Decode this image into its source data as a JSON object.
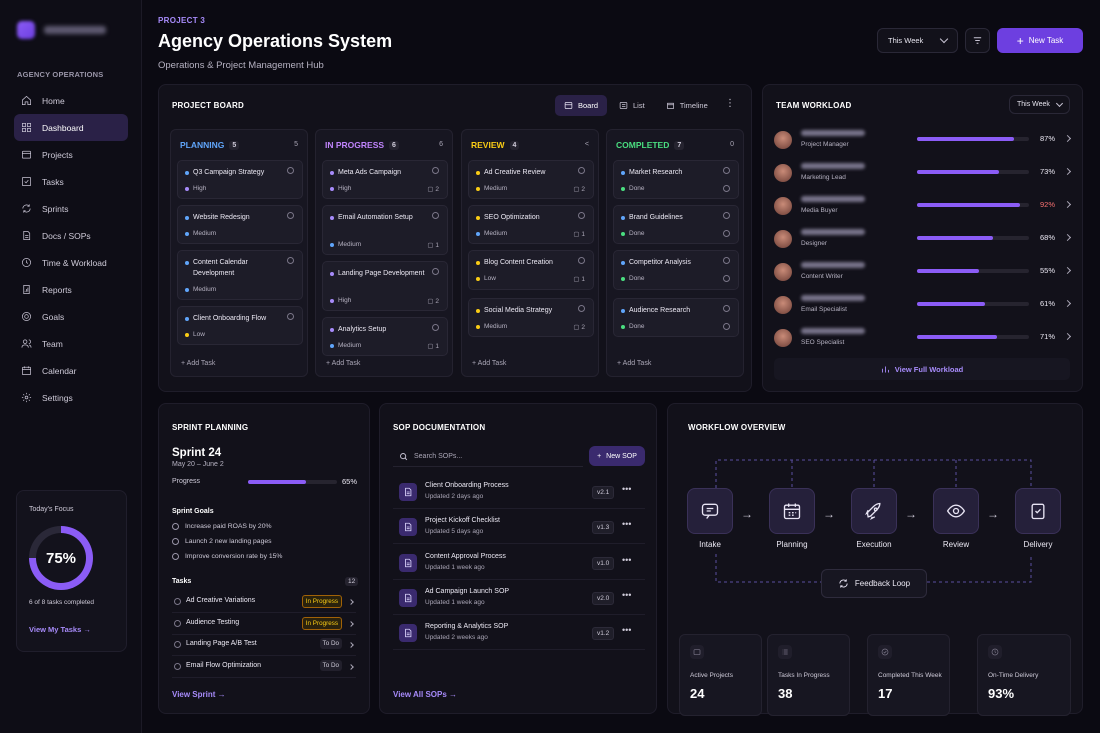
{
  "colors": {
    "accent": "#8b5cf6",
    "planning": "#60a5fa",
    "progress": "#c084fc",
    "review": "#facc15",
    "completed": "#4ade80",
    "danger": "#f87171"
  },
  "sidebar": {
    "section": "AGENCY OPERATIONS",
    "items": [
      {
        "label": "Home",
        "icon": "home-icon"
      },
      {
        "label": "Dashboard",
        "icon": "grid-icon"
      },
      {
        "label": "Projects",
        "icon": "folder-icon"
      },
      {
        "label": "Tasks",
        "icon": "check-square-icon"
      },
      {
        "label": "Sprints",
        "icon": "sprint-icon"
      },
      {
        "label": "Docs / SOPs",
        "icon": "doc-icon"
      },
      {
        "label": "Time & Workload",
        "icon": "clock-icon"
      },
      {
        "label": "Reports",
        "icon": "report-icon"
      },
      {
        "label": "Goals",
        "icon": "target-icon"
      },
      {
        "label": "Team",
        "icon": "team-icon"
      },
      {
        "label": "Calendar",
        "icon": "calendar-icon"
      },
      {
        "label": "Settings",
        "icon": "gear-icon"
      }
    ],
    "focus": {
      "title": "Today's Focus",
      "value": "75%",
      "percent": 75,
      "sub": "6 of 8 tasks completed",
      "link": "View My Tasks"
    }
  },
  "header": {
    "project": "PROJECT 3",
    "title": "Agency Operations System",
    "subtitle": "Operations & Project Management Hub",
    "range": "This Week",
    "new_task": "New Task"
  },
  "board": {
    "title": "PROJECT BOARD",
    "views": [
      "Board",
      "List",
      "Timeline"
    ],
    "add_task": "Add Task",
    "columns": [
      {
        "name": "PLANNING",
        "count": "5",
        "extra": "5",
        "cards": [
          {
            "title": "Q3 Campaign Strategy",
            "tag": "High"
          },
          {
            "title": "Website Redesign",
            "tag": "Medium"
          },
          {
            "title": "Content Calendar Development",
            "tag": "Medium"
          },
          {
            "title": "Client Onboarding Flow",
            "tag": "Low"
          }
        ]
      },
      {
        "name": "IN PROGRESS",
        "count": "6",
        "extra": "6",
        "cards": [
          {
            "title": "Meta Ads Campaign",
            "tag": "High",
            "meta": "2"
          },
          {
            "title": "Email Automation Setup",
            "tag": "Medium",
            "meta": "1"
          },
          {
            "title": "Landing Page Development",
            "tag": "High",
            "meta": "2"
          },
          {
            "title": "Analytics Setup",
            "tag": "Medium",
            "meta": "1"
          }
        ]
      },
      {
        "name": "REVIEW",
        "count": "4",
        "extra": "<",
        "cards": [
          {
            "title": "Ad Creative Review",
            "tag": "Medium",
            "meta": "2"
          },
          {
            "title": "SEO Optimization",
            "tag": "Medium",
            "meta": "1"
          },
          {
            "title": "Blog Content Creation",
            "tag": "Low",
            "meta": "1"
          },
          {
            "title": "Social Media Strategy",
            "tag": "Medium",
            "meta": "2"
          }
        ]
      },
      {
        "name": "COMPLETED",
        "count": "7",
        "extra": "0",
        "cards": [
          {
            "title": "Market Research",
            "tag": "Done"
          },
          {
            "title": "Brand Guidelines",
            "tag": "Done"
          },
          {
            "title": "Competitor Analysis",
            "tag": "Done"
          },
          {
            "title": "Audience Research",
            "tag": "Done"
          }
        ]
      }
    ]
  },
  "workload": {
    "title": "TEAM WORKLOAD",
    "range": "This Week",
    "link": "View Full Workload",
    "members": [
      {
        "role": "Project Manager",
        "pct": "87%",
        "value": 87
      },
      {
        "role": "Marketing Lead",
        "pct": "73%",
        "value": 73
      },
      {
        "role": "Media Buyer",
        "pct": "92%",
        "value": 92
      },
      {
        "role": "Designer",
        "pct": "68%",
        "value": 68
      },
      {
        "role": "Content Writer",
        "pct": "55%",
        "value": 55
      },
      {
        "role": "Email Specialist",
        "pct": "61%",
        "value": 61
      },
      {
        "role": "SEO Specialist",
        "pct": "71%",
        "value": 71
      }
    ]
  },
  "sprint": {
    "title": "SPRINT PLANNING",
    "name": "Sprint 24",
    "dates": "May 20 – June 2",
    "progress_label": "Progress",
    "progress": "65%",
    "progress_value": 65,
    "goals_title": "Sprint Goals",
    "goals": [
      "Increase paid ROAS by 20%",
      "Launch 2 new landing pages",
      "Improve conversion rate by 15%"
    ],
    "tasks_title": "Tasks",
    "tasks_count": "12",
    "tasks": [
      {
        "name": "Ad Creative Variations",
        "status": "In Progress"
      },
      {
        "name": "Audience Testing",
        "status": "In Progress"
      },
      {
        "name": "Landing Page A/B Test",
        "status": "To Do"
      },
      {
        "name": "Email Flow Optimization",
        "status": "To Do"
      }
    ],
    "link": "View Sprint"
  },
  "sop": {
    "title": "SOP DOCUMENTATION",
    "search_placeholder": "Search SOPs...",
    "new_sop": "New SOP",
    "link": "View All SOPs",
    "items": [
      {
        "title": "Client Onboarding Process",
        "sub": "Updated 2 days ago",
        "ver": "v2.1"
      },
      {
        "title": "Project Kickoff Checklist",
        "sub": "Updated 5 days ago",
        "ver": "v1.3"
      },
      {
        "title": "Content Approval Process",
        "sub": "Updated 1 week ago",
        "ver": "v1.0"
      },
      {
        "title": "Ad Campaign Launch SOP",
        "sub": "Updated 1 week ago",
        "ver": "v2.0"
      },
      {
        "title": "Reporting & Analytics SOP",
        "sub": "Updated 2 weeks ago",
        "ver": "v1.2"
      }
    ]
  },
  "workflow": {
    "title": "WORKFLOW OVERVIEW",
    "steps": [
      "Intake",
      "Planning",
      "Execution",
      "Review",
      "Delivery"
    ],
    "feedback": "Feedback Loop",
    "stats": [
      {
        "label": "Active Projects",
        "value": "24"
      },
      {
        "label": "Tasks In Progress",
        "value": "38"
      },
      {
        "label": "Completed This Week",
        "value": "17"
      },
      {
        "label": "On-Time Delivery",
        "value": "93%"
      }
    ]
  }
}
